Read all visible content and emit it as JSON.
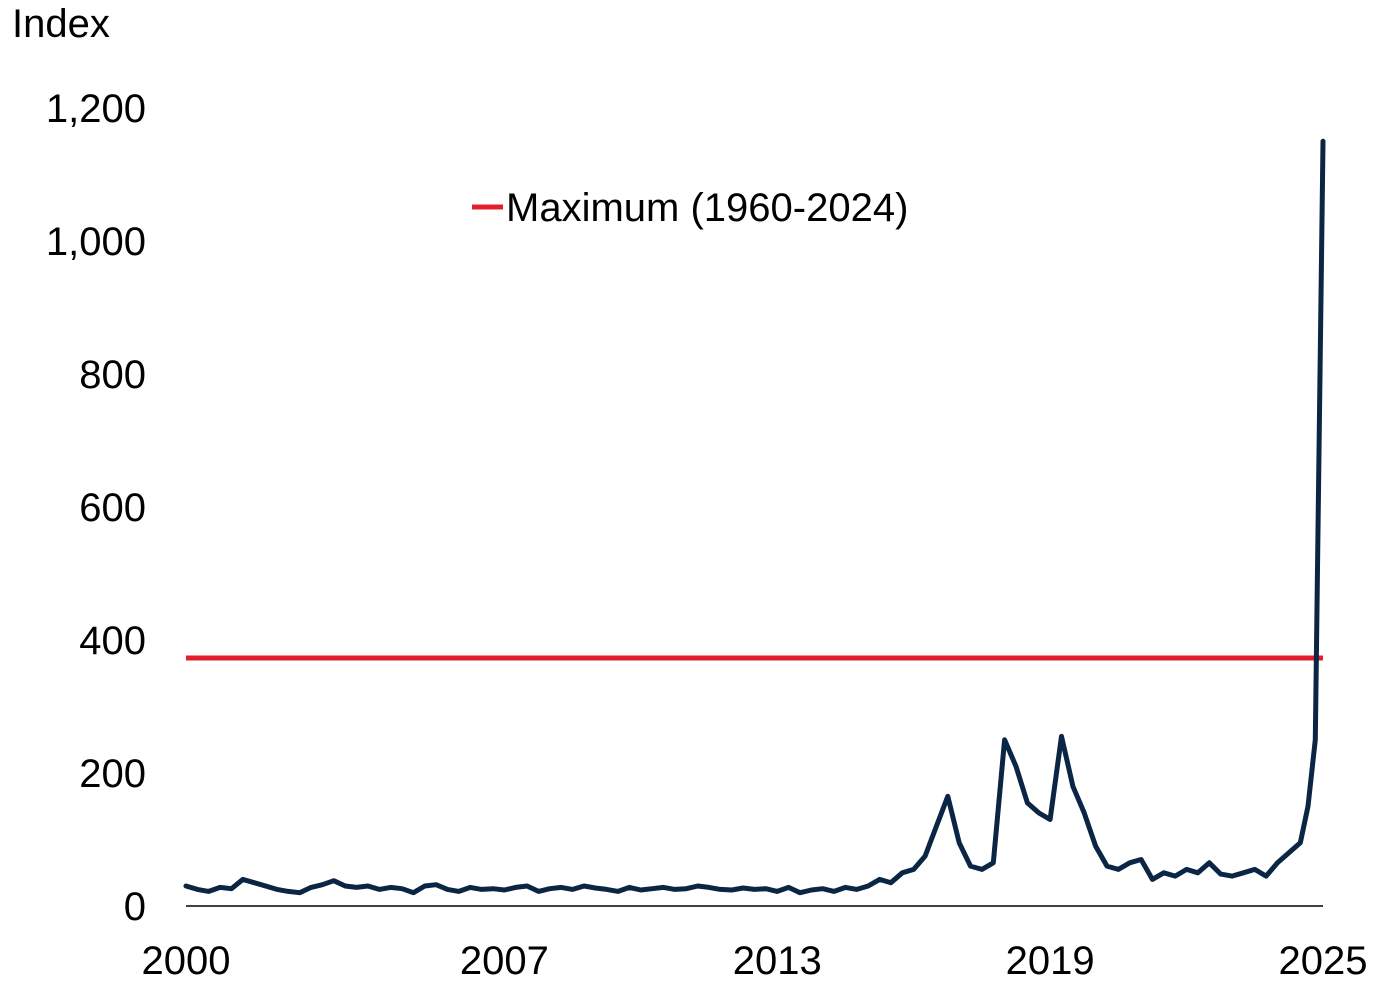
{
  "chart_data": {
    "type": "line",
    "ylabel": "Index",
    "ylim": [
      0,
      1200
    ],
    "yticks": [
      0,
      200,
      400,
      600,
      800,
      1000,
      1200
    ],
    "ytick_labels": [
      "0",
      "200",
      "400",
      "600",
      "800",
      "1,000",
      "1,200"
    ],
    "xlim": [
      2000,
      2025
    ],
    "xticks": [
      2000,
      2007,
      2013,
      2019,
      2025
    ],
    "xtick_labels": [
      "2000",
      "2007",
      "2013",
      "2019",
      "2025"
    ],
    "colors": {
      "series": "#0b2545",
      "reference": "#e0202f"
    },
    "legend": {
      "position": "top-center",
      "entries": [
        "Maximum (1960-2024)"
      ]
    },
    "reference_line": {
      "name": "Maximum (1960-2024)",
      "value": 373
    },
    "series": [
      {
        "x": [
          2000.0,
          2000.25,
          2000.5,
          2000.75,
          2001.0,
          2001.25,
          2001.5,
          2001.75,
          2002.0,
          2002.25,
          2002.5,
          2002.75,
          2003.0,
          2003.25,
          2003.5,
          2003.75,
          2004.0,
          2004.25,
          2004.5,
          2004.75,
          2005.0,
          2005.25,
          2005.5,
          2005.75,
          2006.0,
          2006.25,
          2006.5,
          2006.75,
          2007.0,
          2007.25,
          2007.5,
          2007.75,
          2008.0,
          2008.25,
          2008.5,
          2008.75,
          2009.0,
          2009.25,
          2009.5,
          2009.75,
          2010.0,
          2010.25,
          2010.5,
          2010.75,
          2011.0,
          2011.25,
          2011.5,
          2011.75,
          2012.0,
          2012.25,
          2012.5,
          2012.75,
          2013.0,
          2013.25,
          2013.5,
          2013.75,
          2014.0,
          2014.25,
          2014.5,
          2014.75,
          2015.0,
          2015.25,
          2015.5,
          2015.75,
          2016.0,
          2016.25,
          2016.5,
          2016.75,
          2017.0,
          2017.25,
          2017.5,
          2017.75,
          2018.0,
          2018.25,
          2018.5,
          2018.75,
          2019.0,
          2019.25,
          2019.5,
          2019.75,
          2020.0,
          2020.25,
          2020.5,
          2020.75,
          2021.0,
          2021.25,
          2021.5,
          2021.75,
          2022.0,
          2022.25,
          2022.5,
          2022.75,
          2023.0,
          2023.25,
          2023.5,
          2023.75,
          2024.0,
          2024.25,
          2024.5,
          2024.67,
          2024.83,
          2025.0
        ],
        "y": [
          30,
          25,
          22,
          28,
          26,
          40,
          35,
          30,
          25,
          22,
          20,
          28,
          32,
          38,
          30,
          28,
          30,
          25,
          28,
          26,
          20,
          30,
          32,
          25,
          22,
          28,
          25,
          26,
          24,
          28,
          30,
          22,
          26,
          28,
          25,
          30,
          27,
          25,
          22,
          28,
          24,
          26,
          28,
          25,
          26,
          30,
          28,
          25,
          24,
          27,
          25,
          26,
          22,
          28,
          20,
          24,
          26,
          22,
          28,
          25,
          30,
          40,
          35,
          50,
          55,
          75,
          120,
          165,
          95,
          60,
          55,
          65,
          250,
          210,
          155,
          140,
          130,
          255,
          180,
          140,
          90,
          60,
          55,
          65,
          70,
          40,
          50,
          45,
          55,
          50,
          65,
          48,
          45,
          50,
          55,
          45,
          65,
          80,
          95,
          150,
          250,
          1150
        ]
      }
    ]
  }
}
